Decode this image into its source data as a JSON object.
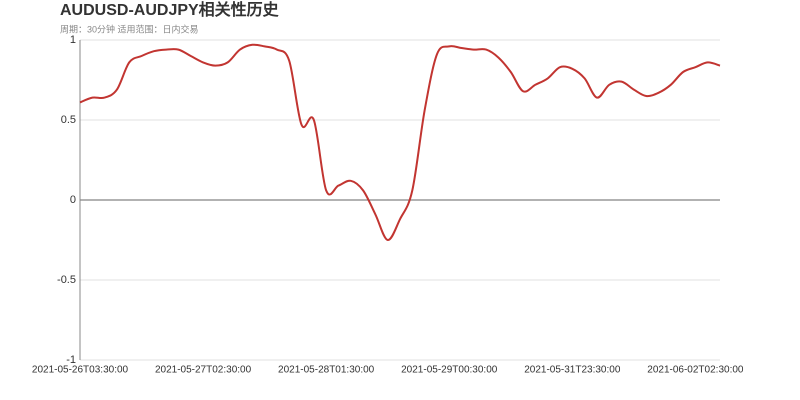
{
  "chart_data": {
    "type": "line",
    "title": "AUDUSD-AUDJPY相关性历史",
    "subtitle": "周期：30分钟 适用范围：日内交易",
    "categories": [
      "2021-05-26T03:30:00",
      null,
      null,
      null,
      null,
      null,
      null,
      null,
      null,
      null,
      "2021-05-27T02:30:00",
      null,
      null,
      null,
      null,
      null,
      null,
      null,
      null,
      null,
      "2021-05-28T01:30:00",
      null,
      null,
      null,
      null,
      null,
      null,
      null,
      null,
      null,
      "2021-05-29T00:30:00",
      null,
      null,
      null,
      null,
      null,
      null,
      null,
      null,
      null,
      "2021-05-31T23:30:00",
      null,
      null,
      null,
      null,
      null,
      null,
      null,
      null,
      null,
      "2021-06-02T02:30:00",
      null,
      null
    ],
    "series": [
      {
        "name": "AUDUSD-AUDJPY",
        "color": "#c23531",
        "values": [
          0.61,
          0.64,
          0.64,
          0.69,
          0.86,
          0.9,
          0.93,
          0.94,
          0.94,
          0.9,
          0.86,
          0.84,
          0.86,
          0.94,
          0.97,
          0.96,
          0.94,
          0.87,
          0.47,
          0.5,
          0.06,
          0.09,
          0.12,
          0.06,
          -0.09,
          -0.25,
          -0.12,
          0.06,
          0.56,
          0.91,
          0.96,
          0.95,
          0.94,
          0.94,
          0.89,
          0.8,
          0.68,
          0.72,
          0.76,
          0.83,
          0.82,
          0.76,
          0.64,
          0.72,
          0.74,
          0.69,
          0.65,
          0.67,
          0.72,
          0.8,
          0.83,
          0.86,
          0.84
        ]
      }
    ],
    "ylim": [
      -1,
      1
    ],
    "yticks": [
      1,
      0.5,
      0,
      -0.5,
      -1
    ],
    "grid": true
  }
}
